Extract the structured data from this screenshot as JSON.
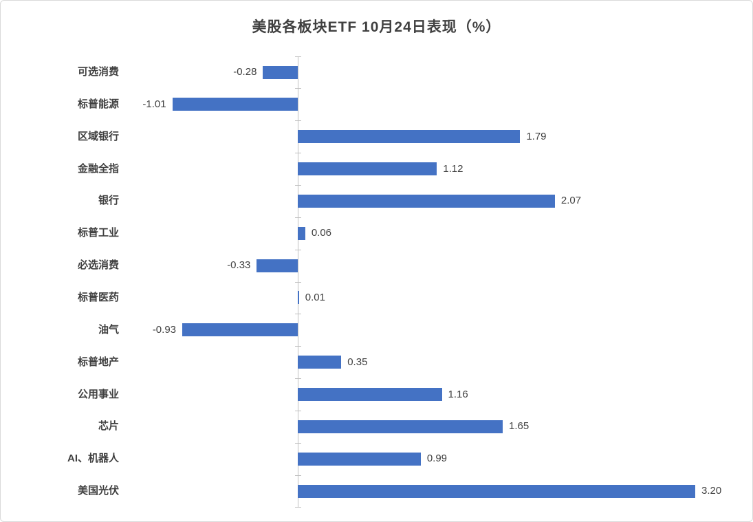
{
  "chart_data": {
    "type": "bar",
    "orientation": "horizontal",
    "title": "美股各板块ETF 10月24日表现（%）",
    "categories": [
      "可选消费",
      "标普能源",
      "区域银行",
      "金融全指",
      "银行",
      "标普工业",
      "必选消费",
      "标普医药",
      "油气",
      "标普地产",
      "公用事业",
      "芯片",
      "AI、机器人",
      "美国光伏"
    ],
    "values": [
      -0.28,
      -1.01,
      1.79,
      1.12,
      2.07,
      0.06,
      -0.33,
      0.01,
      -0.93,
      0.35,
      1.16,
      1.65,
      0.99,
      3.2
    ],
    "value_labels": [
      "-0.28",
      "-1.01",
      "1.79",
      "1.12",
      "2.07",
      "0.06",
      "-0.33",
      "0.01",
      "-0.93",
      "0.35",
      "1.16",
      "1.65",
      "0.99",
      "3.20"
    ],
    "xlim": [
      -1.2,
      3.4
    ],
    "grid": false,
    "legend": "none",
    "colors": {
      "bar": "#4472C4",
      "axis": "#bfbfbf",
      "text": "#404040"
    }
  }
}
